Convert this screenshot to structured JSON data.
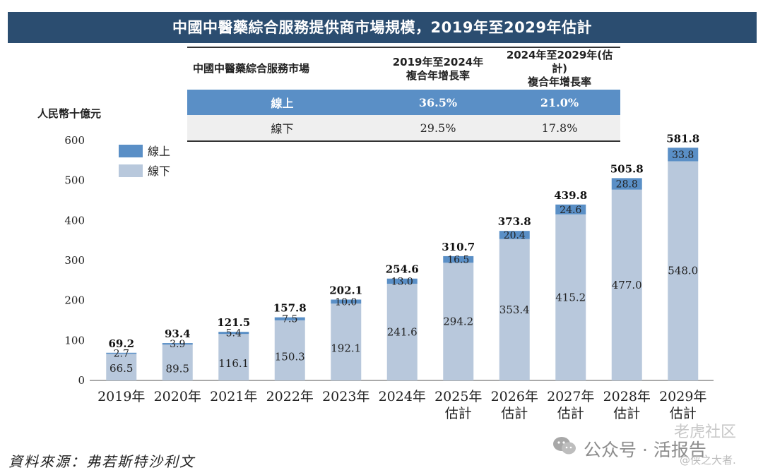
{
  "title": "中國中醫藥綜合服務提供商市場規模，2019年至2029年估計",
  "table": {
    "headers": [
      "中國中醫藥綜合服務市場",
      "2019年至2024年\n複合年增長率",
      "2024年至2029年(估計)\n複合年增長率"
    ],
    "rows": [
      {
        "label": "線上",
        "cagr_2019_2024": "36.5%",
        "cagr_2024_2029": "21.0%"
      },
      {
        "label": "線下",
        "cagr_2019_2024": "29.5%",
        "cagr_2024_2029": "17.8%"
      }
    ]
  },
  "source": "資料來源：弗若斯特沙利文",
  "watermark": {
    "main": "公众号 · 活报告",
    "top": "老虎社区",
    "sub": "@侠之大者."
  },
  "colors": {
    "online": "#5a8fc6",
    "offline": "#b8c8dc",
    "header": "#2b4d70"
  },
  "chart_data": {
    "type": "bar",
    "stacked": true,
    "ylabel": "人民幣十億元",
    "ylim": [
      0,
      600
    ],
    "yticks": [
      0,
      100,
      200,
      300,
      400,
      500,
      600
    ],
    "categories": [
      [
        "2019年"
      ],
      [
        "2020年"
      ],
      [
        "2021年"
      ],
      [
        "2022年"
      ],
      [
        "2023年"
      ],
      [
        "2024年"
      ],
      [
        "2025年",
        "估計"
      ],
      [
        "2026年",
        "估計"
      ],
      [
        "2027年",
        "估計"
      ],
      [
        "2028年",
        "估計"
      ],
      [
        "2029年",
        "估計"
      ]
    ],
    "series": [
      {
        "name": "線下",
        "values": [
          66.5,
          89.5,
          116.1,
          150.3,
          192.1,
          241.6,
          294.2,
          353.4,
          415.2,
          477.0,
          548.0
        ],
        "labels": [
          "66.5",
          "89.5",
          "116.1",
          "150.3",
          "192.1",
          "241.6",
          "294.2",
          "353.4",
          "415.2",
          "477.0",
          "548.0"
        ]
      },
      {
        "name": "線上",
        "values": [
          2.7,
          3.9,
          5.4,
          7.5,
          10.0,
          13.0,
          16.5,
          20.4,
          24.6,
          28.8,
          33.8
        ],
        "labels": [
          "2.7",
          "3.9",
          "5.4",
          "7.5",
          "10.0",
          "13.0",
          "16.5",
          "20.4",
          "24.6",
          "28.8",
          "33.8"
        ]
      }
    ],
    "totals": [
      69.2,
      93.4,
      121.5,
      157.8,
      202.1,
      254.6,
      310.7,
      373.8,
      439.8,
      505.8,
      581.8
    ],
    "total_labels": [
      "69.2",
      "93.4",
      "121.5",
      "157.8",
      "202.1",
      "254.6",
      "310.7",
      "373.8",
      "439.8",
      "505.8",
      "581.8"
    ],
    "legend": [
      {
        "name": "線上"
      },
      {
        "name": "線下"
      }
    ],
    "legend_position": "top-left"
  }
}
